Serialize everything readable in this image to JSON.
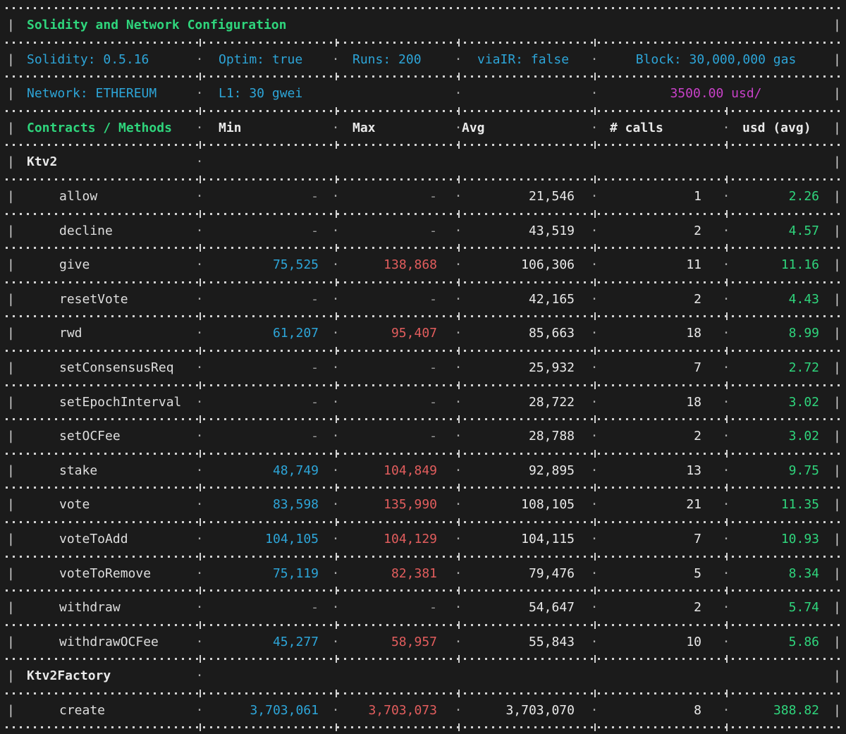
{
  "terminal": {
    "colors": {
      "bg": "#1b1b1b",
      "border": "#d2d2d2",
      "green": "#2fd57c",
      "cyan": "#2da5d8",
      "red": "#e25d5d",
      "magenta": "#c841c8",
      "white": "#e9e9e9",
      "methodc": "#dedede",
      "gray": "#9c9c9c",
      "middot": "#aaaaaa"
    },
    "title": "Solidity and Network Configuration",
    "config": {
      "row1": {
        "solidity": "Solidity: 0.5.16",
        "optim": "Optim: true",
        "runs": "Runs: 200",
        "viair": "viaIR: false",
        "block": "Block: 30,000,000 gas"
      },
      "row2": {
        "network": "Network: ETHEREUM",
        "l1": "L1: 30 gwei",
        "price": "3500.00 usd/"
      }
    },
    "headers": {
      "contracts": "Contracts / Methods",
      "min": "Min",
      "max": "Max",
      "avg": "Avg",
      "calls": "# calls",
      "usd": "usd (avg)"
    },
    "rows": [
      {
        "type": "contract",
        "name": "Ktv2"
      },
      {
        "type": "method",
        "name": "allow",
        "min": "-",
        "max": "-",
        "avg": "21,546",
        "calls": "1",
        "usd": "2.26"
      },
      {
        "type": "method",
        "name": "decline",
        "min": "-",
        "max": "-",
        "avg": "43,519",
        "calls": "2",
        "usd": "4.57"
      },
      {
        "type": "method",
        "name": "give",
        "min": "75,525",
        "max": "138,868",
        "avg": "106,306",
        "calls": "11",
        "usd": "11.16"
      },
      {
        "type": "method",
        "name": "resetVote",
        "min": "-",
        "max": "-",
        "avg": "42,165",
        "calls": "2",
        "usd": "4.43"
      },
      {
        "type": "method",
        "name": "rwd",
        "min": "61,207",
        "max": "95,407",
        "avg": "85,663",
        "calls": "18",
        "usd": "8.99"
      },
      {
        "type": "method",
        "name": "setConsensusReq",
        "min": "-",
        "max": "-",
        "avg": "25,932",
        "calls": "7",
        "usd": "2.72"
      },
      {
        "type": "method",
        "name": "setEpochInterval",
        "min": "-",
        "max": "-",
        "avg": "28,722",
        "calls": "18",
        "usd": "3.02"
      },
      {
        "type": "method",
        "name": "setOCFee",
        "min": "-",
        "max": "-",
        "avg": "28,788",
        "calls": "2",
        "usd": "3.02"
      },
      {
        "type": "method",
        "name": "stake",
        "min": "48,749",
        "max": "104,849",
        "avg": "92,895",
        "calls": "13",
        "usd": "9.75"
      },
      {
        "type": "method",
        "name": "vote",
        "min": "83,598",
        "max": "135,990",
        "avg": "108,105",
        "calls": "21",
        "usd": "11.35"
      },
      {
        "type": "method",
        "name": "voteToAdd",
        "min": "104,105",
        "max": "104,129",
        "avg": "104,115",
        "calls": "7",
        "usd": "10.93"
      },
      {
        "type": "method",
        "name": "voteToRemove",
        "min": "75,119",
        "max": "82,381",
        "avg": "79,476",
        "calls": "5",
        "usd": "8.34"
      },
      {
        "type": "method",
        "name": "withdraw",
        "min": "-",
        "max": "-",
        "avg": "54,647",
        "calls": "2",
        "usd": "5.74"
      },
      {
        "type": "method",
        "name": "withdrawOCFee",
        "min": "45,277",
        "max": "58,957",
        "avg": "55,843",
        "calls": "10",
        "usd": "5.86"
      },
      {
        "type": "contract",
        "name": "Ktv2Factory"
      },
      {
        "type": "method",
        "name": "create",
        "min": "3,703,061",
        "max": "3,703,073",
        "avg": "3,703,070",
        "calls": "8",
        "usd": "388.82"
      }
    ]
  }
}
